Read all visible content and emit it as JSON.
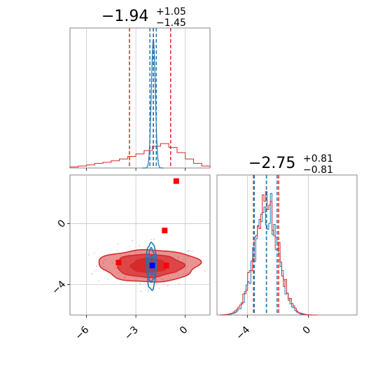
{
  "chart_data": {
    "type": "corner",
    "parameters": [
      {
        "title_main": "−1.94",
        "title_sup": "+1.05",
        "title_sub": "−1.45"
      },
      {
        "title_main": "−2.75",
        "title_sup": "+0.81",
        "title_sub": "−0.81"
      }
    ],
    "colors": {
      "red": "#d62728",
      "blue": "#1f77b4",
      "truth_point": "#0000ff",
      "marker": "#ff0000",
      "grid": "#c8c8c8"
    },
    "axes": {
      "x_param1": {
        "range": [
          -7,
          1.5
        ],
        "ticks": [
          -6,
          -3,
          0
        ],
        "tick_labels": [
          "−6",
          "−3",
          "0"
        ]
      },
      "y_param2": {
        "range": [
          -6,
          3.2
        ],
        "ticks": [
          0,
          -4
        ],
        "tick_labels": [
          "0",
          "−4"
        ]
      },
      "x_param2": {
        "range": [
          -6,
          3.2
        ],
        "ticks": [
          -4,
          0
        ],
        "tick_labels": [
          "−4",
          "0"
        ]
      }
    },
    "panel_1d_param1": {
      "quantile_lines_red": [
        -3.39,
        -1.94,
        -0.89
      ],
      "quantile_lines_blue": [
        -2.15,
        -1.94,
        -1.76
      ],
      "red_hist_x": [
        -7.0,
        -6.5,
        -6.0,
        -5.5,
        -5.0,
        -4.5,
        -4.0,
        -3.5,
        -3.0,
        -2.5,
        -2.0,
        -1.5,
        -1.0,
        -0.5,
        0.0,
        0.5,
        1.0,
        1.5
      ],
      "red_hist_y": [
        0.004,
        0.008,
        0.012,
        0.018,
        0.022,
        0.028,
        0.035,
        0.045,
        0.055,
        0.068,
        0.085,
        0.095,
        0.08,
        0.06,
        0.035,
        0.018,
        0.008
      ],
      "blue_peak_center": -1.94,
      "blue_peak_width": 0.12
    },
    "panel_1d_param2": {
      "quantile_lines_red": [
        -3.6,
        -2.75,
        -1.95
      ],
      "quantile_lines_blue": [
        -3.55,
        -2.75,
        -2.05
      ],
      "hist_center": -2.75,
      "hist_sigma": 0.75
    },
    "panel_2d": {
      "red_contour_center": [
        -2.2,
        -2.75
      ],
      "red_contour_widths": [
        [
          3.0,
          1.05
        ],
        [
          2.0,
          0.75
        ],
        [
          1.1,
          0.45
        ]
      ],
      "blue_contour_center": [
        -2.05,
        -2.75
      ],
      "blue_contour_widths": [
        [
          0.3,
          1.55
        ],
        [
          0.22,
          1.1
        ],
        [
          0.12,
          0.6
        ]
      ],
      "red_markers": [
        [
          -0.55,
          2.8
        ],
        [
          -1.25,
          -0.45
        ],
        [
          -4.05,
          -2.55
        ],
        [
          -1.15,
          -2.75
        ]
      ],
      "truth_point": [
        -2.0,
        -2.75
      ]
    }
  }
}
